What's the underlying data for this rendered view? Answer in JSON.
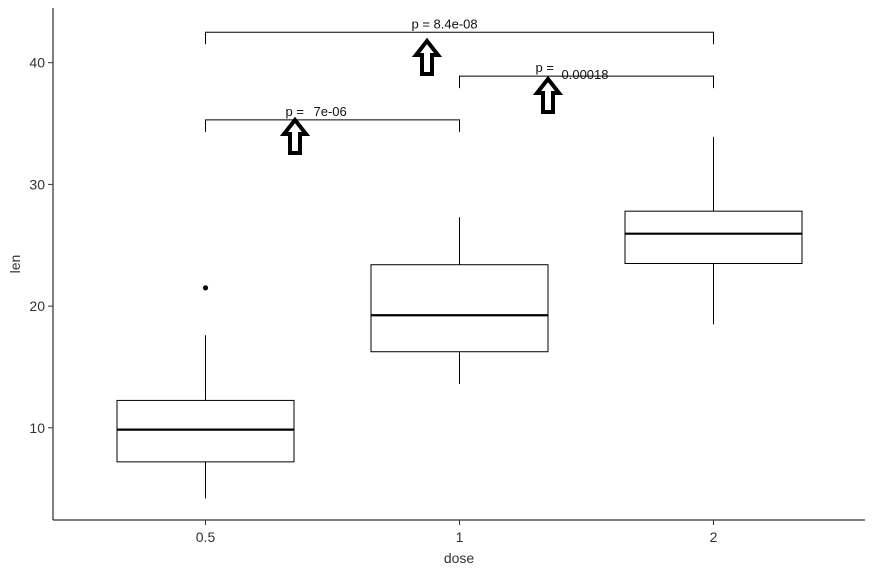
{
  "chart_data": {
    "type": "box",
    "xlabel": "dose",
    "ylabel": "len",
    "categories": [
      "0.5",
      "1",
      "2"
    ],
    "ylim": [
      2,
      45
    ],
    "yticks": [
      10,
      20,
      30,
      40
    ],
    "boxes": [
      {
        "category": "0.5",
        "whisker_low": 4.2,
        "q1": 7.2,
        "median": 9.85,
        "q3": 12.25,
        "whisker_high": 17.6,
        "outliers": [
          21.5
        ]
      },
      {
        "category": "1",
        "whisker_low": 13.6,
        "q1": 16.25,
        "median": 19.25,
        "q3": 23.4,
        "whisker_high": 27.3,
        "outliers": []
      },
      {
        "category": "2",
        "whisker_low": 18.5,
        "q1": 23.5,
        "median": 25.95,
        "q3": 27.8,
        "whisker_high": 33.9,
        "outliers": []
      }
    ],
    "comparisons": [
      {
        "from": "0.5",
        "to": "1",
        "y": 35.3,
        "label_prefix": "p =",
        "label_value": "7e-06"
      },
      {
        "from": "1",
        "to": "2",
        "y": 38.9,
        "label_prefix": "p =",
        "label_value": "0.00018"
      },
      {
        "from": "0.5",
        "to": "2",
        "y": 42.5,
        "label_prefix": "p = 8.4e-08",
        "label_value": ""
      }
    ],
    "annotation_arrows": 3,
    "grid": false
  }
}
